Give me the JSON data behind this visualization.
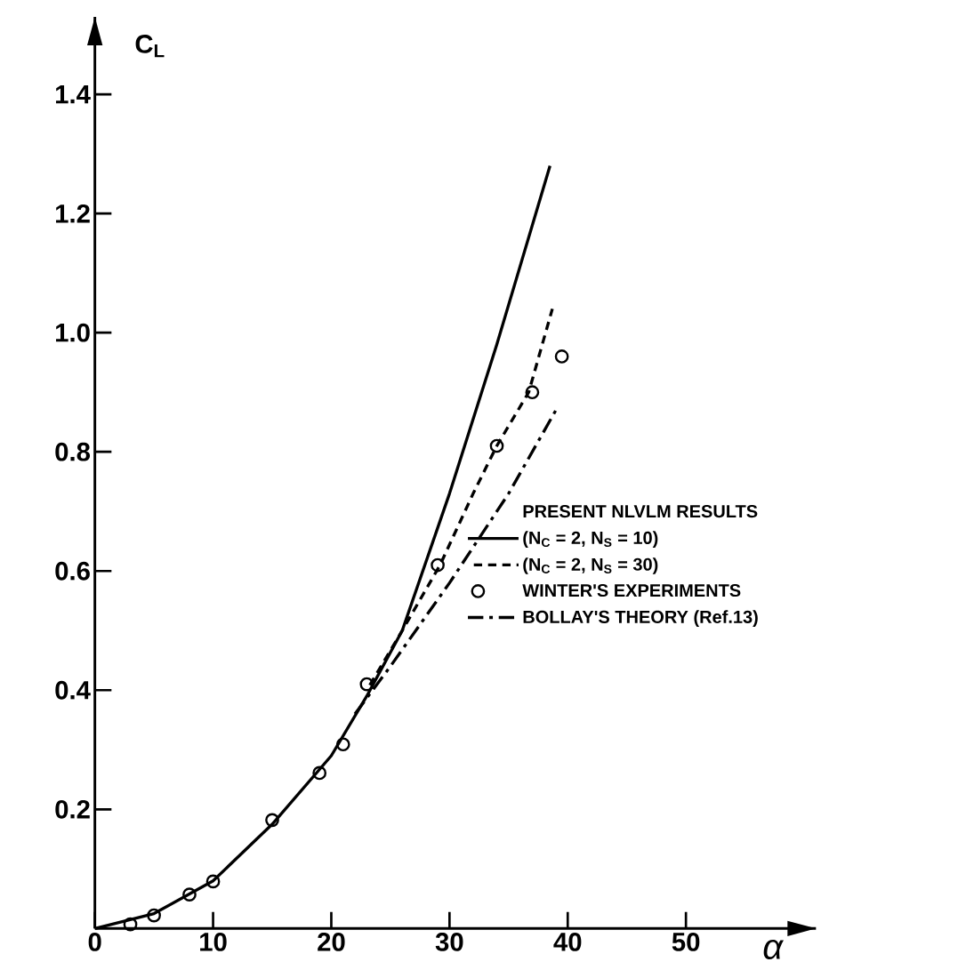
{
  "chart_data": {
    "type": "line",
    "xlabel": "α",
    "ylabel": "C$_{L}$",
    "legend_title": "PRESENT NLVLM RESULTS",
    "xlim": [
      0,
      61
    ],
    "ylim": [
      0,
      1.53
    ],
    "xticks": [
      0,
      10,
      20,
      30,
      40,
      50
    ],
    "yticks": [
      {
        "value": 0.2,
        "label": "0.2"
      },
      {
        "value": 0.4,
        "label": "0.4"
      },
      {
        "value": 0.6,
        "label": "0.6"
      },
      {
        "value": 0.8,
        "label": "0.8"
      },
      {
        "value": 1.0,
        "label": "1.0"
      },
      {
        "value": 1.2,
        "label": "1.2"
      },
      {
        "value": 1.4,
        "label": "1.4"
      }
    ],
    "legend": "right",
    "grid": false,
    "series": [
      {
        "name": "(N$_{C}$ = 2, N$_{S}$ = 10)",
        "color": "#000000",
        "line_style": "solid",
        "marker": "none",
        "x": [
          0,
          5,
          10,
          15,
          20,
          23,
          26,
          30,
          34,
          38.5
        ],
        "values": [
          0,
          0.025,
          0.08,
          0.175,
          0.29,
          0.39,
          0.5,
          0.73,
          0.98,
          1.28
        ]
      },
      {
        "name": "(N$_{C}$ = 2, N$_{S}$ = 30)",
        "color": "#000000",
        "line_style": "dashed",
        "marker": "none",
        "x": [
          23,
          26,
          29.2,
          32,
          34,
          36.7,
          38.7
        ],
        "values": [
          0.4,
          0.5,
          0.61,
          0.73,
          0.81,
          0.9,
          1.04
        ]
      },
      {
        "name": "WINTER'S EXPERIMENTS",
        "type": "scatter",
        "color": "#000000",
        "marker": "circle",
        "x": [
          3,
          5,
          8,
          10,
          15,
          19,
          21,
          23,
          29,
          34,
          37,
          39.5
        ],
        "values": [
          0.007,
          0.022,
          0.057,
          0.079,
          0.182,
          0.261,
          0.309,
          0.41,
          0.61,
          0.81,
          0.9,
          0.96
        ]
      },
      {
        "name": "BOLLAY'S THEORY (Ref.13)",
        "color": "#000000",
        "line_style": "dashdot",
        "marker": "none",
        "x": [
          22,
          25,
          30,
          35,
          39
        ],
        "values": [
          0.36,
          0.44,
          0.58,
          0.73,
          0.87
        ]
      }
    ]
  }
}
